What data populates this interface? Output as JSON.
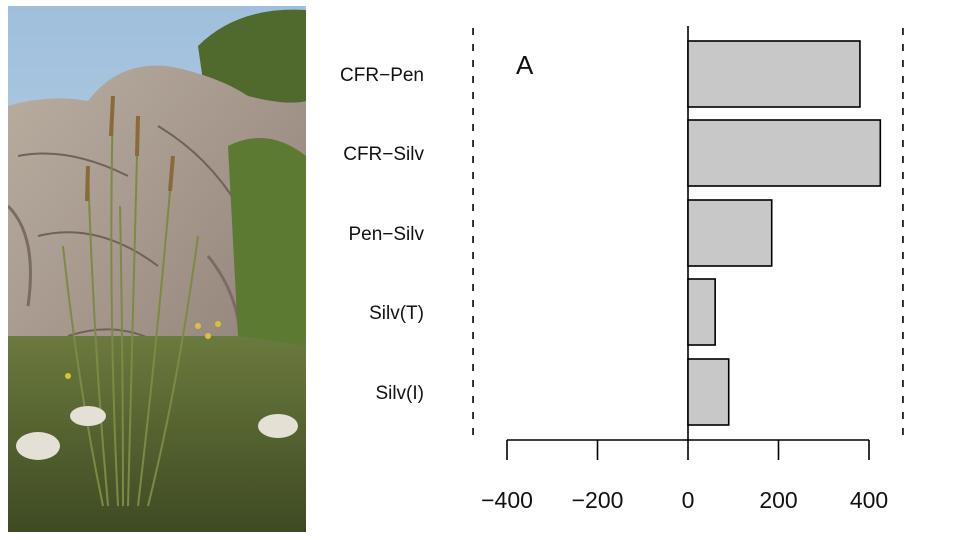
{
  "photo": {
    "icon": "restio-plant-on-rock-photo"
  },
  "chart_data": {
    "type": "bar",
    "orientation": "horizontal",
    "panel_label": "A",
    "title": "",
    "xlabel": "",
    "ylabel": "",
    "categories": [
      "CFR−Pen",
      "CFR−Silv",
      "Pen−Silv",
      "Silv(T)",
      "Silv(I)"
    ],
    "values": [
      380,
      425,
      185,
      60,
      90
    ],
    "xlim": [
      -470,
      480
    ],
    "ticks": [
      {
        "value": -400,
        "label": "−400"
      },
      {
        "value": -200,
        "label": "−200"
      },
      {
        "value": 0,
        "label": "0"
      },
      {
        "value": 200,
        "label": "200"
      },
      {
        "value": 400,
        "label": "400"
      }
    ],
    "reference_lines": [
      -475,
      475
    ],
    "bar_color": "#c8c8c8",
    "bar_edge_color": "#000000",
    "grid": false,
    "legend": "none"
  }
}
